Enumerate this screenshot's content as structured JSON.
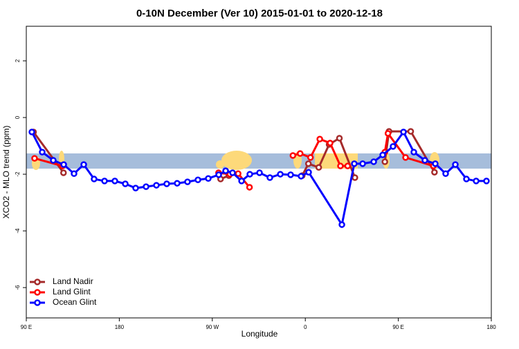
{
  "chart_data": {
    "type": "line",
    "title": "0-10N December (Ver 10)   2015-01-01 to 2020-12-18",
    "x_label": "Longitude",
    "y_label": "XCO2 - MLO trend (ppm)",
    "xlim": [
      90,
      540
    ],
    "ylim": [
      -7.07,
      3.22
    ],
    "xticks": [
      {
        "value": 90,
        "label": "90 E"
      },
      180,
      {
        "value": 270,
        "label": "90 W"
      },
      {
        "value": 360,
        "label": "0"
      },
      {
        "value": 450,
        "label": "90 E"
      },
      {
        "value": 540,
        "label": "180"
      }
    ],
    "yticks": [
      -6,
      -4,
      -2,
      0,
      2
    ],
    "legend": "bottom-left",
    "series": [
      {
        "name": "Land Nadir",
        "color": "#a52a2a",
        "x": [
          97,
          126,
          null,
          278,
          286,
          null,
          357,
          363,
          373,
          383,
          393,
          408,
          null,
          437,
          441,
          462,
          485
        ],
        "values": [
          -0.51,
          -1.95,
          null,
          -2.17,
          -2.05,
          null,
          -2.05,
          -1.63,
          -1.76,
          -0.95,
          -0.73,
          -2.12,
          null,
          -1.56,
          -0.49,
          -0.49,
          -1.93
        ]
      },
      {
        "name": "Land Glint",
        "color": "#ff0000",
        "x": [
          98,
          125,
          null,
          276,
          287,
          295,
          306,
          null,
          348,
          355,
          365,
          374,
          384,
          394,
          401,
          null,
          437,
          440,
          457,
          484
        ],
        "values": [
          -1.44,
          -1.71,
          null,
          -1.95,
          -2.0,
          -1.98,
          -2.46,
          null,
          -1.34,
          -1.27,
          -1.41,
          -0.76,
          -0.9,
          -1.71,
          -1.71,
          null,
          -1.22,
          -0.56,
          -1.41,
          -1.71
        ]
      },
      {
        "name": "Ocean Glint",
        "color": "#0000ff",
        "x": [
          95.4,
          105.4,
          116.1,
          126.2,
          136.2,
          145.6,
          155.6,
          165.7,
          175.7,
          185.8,
          195.8,
          205.9,
          215.9,
          225.9,
          236.0,
          246.0,
          256.1,
          266.1,
          276.2,
          282.9,
          289.6,
          298.3,
          306.3,
          315.7,
          325.7,
          335.8,
          345.8,
          355.9,
          363.2,
          395.4,
          407.4,
          415.5,
          426.2,
          434.9,
          444.9,
          455.0,
          465.0,
          475.7,
          485.8,
          495.8,
          505.2,
          515.9,
          525.3,
          535.3
        ],
        "values": [
          -0.51,
          -1.22,
          -1.51,
          -1.66,
          -1.98,
          -1.66,
          -2.17,
          -2.24,
          -2.24,
          -2.34,
          -2.49,
          -2.44,
          -2.39,
          -2.34,
          -2.32,
          -2.27,
          -2.2,
          -2.15,
          -2.02,
          -1.88,
          -1.95,
          -2.24,
          -2.0,
          -1.95,
          -2.12,
          -2.0,
          -2.02,
          -2.07,
          -1.93,
          -3.78,
          -1.63,
          -1.63,
          -1.56,
          -1.32,
          -1.02,
          -0.51,
          -1.22,
          -1.51,
          -1.63,
          -1.98,
          -1.66,
          -2.17,
          -2.24,
          -2.24
        ]
      }
    ]
  }
}
